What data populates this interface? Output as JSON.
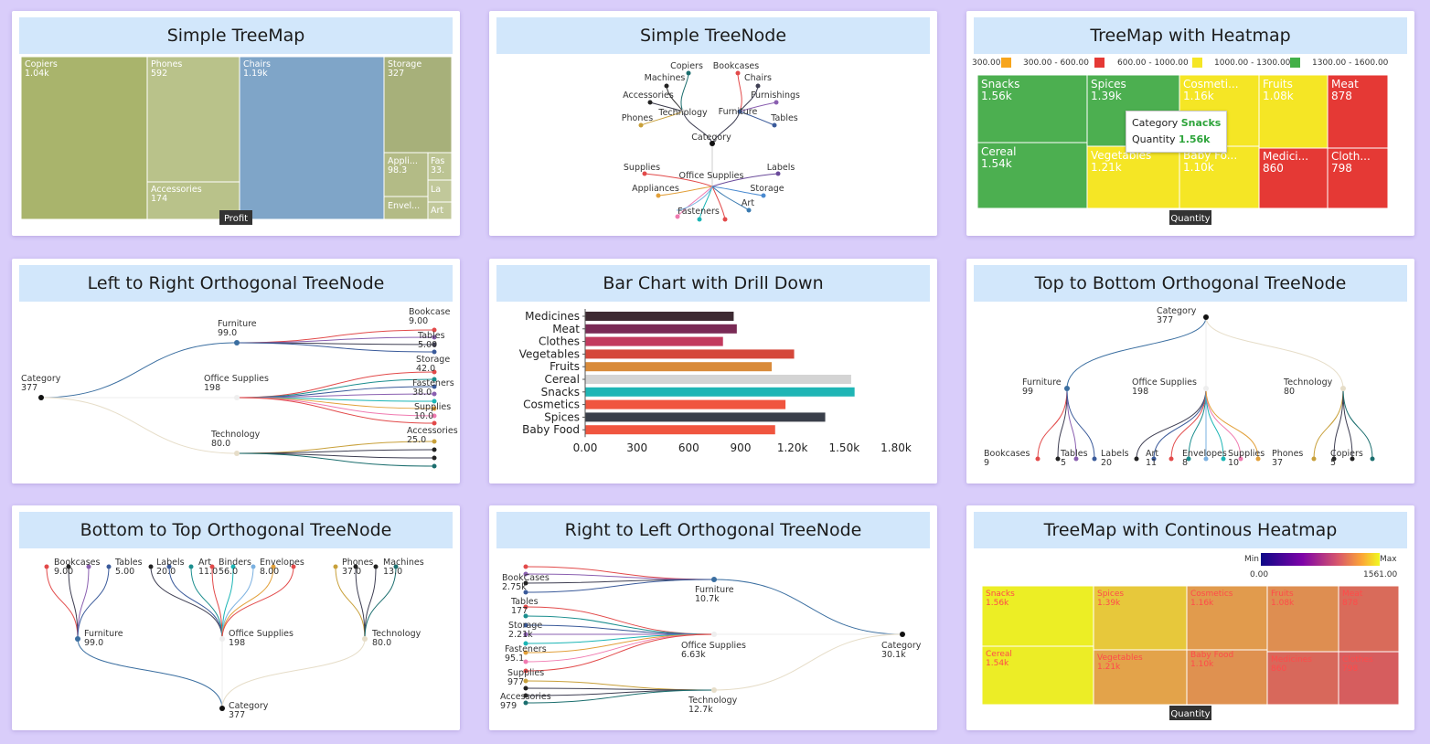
{
  "cards": {
    "c1": {
      "title": "Simple TreeMap"
    },
    "c2": {
      "title": "Simple TreeNode"
    },
    "c3": {
      "title": "TreeMap with Heatmap"
    },
    "c4": {
      "title": "Left to Right Orthogonal TreeNode"
    },
    "c5": {
      "title": "Bar Chart with Drill Down"
    },
    "c6": {
      "title": "Top to Bottom Orthogonal TreeNode"
    },
    "c7": {
      "title": "Bottom to Top Orthogonal TreeNode"
    },
    "c8": {
      "title": "Right to Left Orthogonal TreeNode"
    },
    "c9": {
      "title": "TreeMap with Continous Heatmap"
    }
  },
  "chart_data": [
    {
      "type": "treemap",
      "title": "Simple TreeMap",
      "measure": "Profit",
      "colors": {
        "base": "#a9b46c",
        "highlight": "#7fa5c8"
      },
      "items": [
        {
          "name": "Copiers",
          "value": "1.04k"
        },
        {
          "name": "Phones",
          "value": "592"
        },
        {
          "name": "Accessories",
          "value": "174"
        },
        {
          "name": "Chairs",
          "value": "1.19k"
        },
        {
          "name": "Storage",
          "value": "327"
        },
        {
          "name": "Appli...",
          "value": "98.3"
        },
        {
          "name": "Fas",
          "value": "33."
        },
        {
          "name": "La",
          "value": ""
        },
        {
          "name": "Envel...",
          "value": ""
        },
        {
          "name": "Art",
          "value": ""
        }
      ]
    },
    {
      "type": "tree",
      "title": "Simple TreeNode",
      "root": "Category",
      "groups": {
        "technology": {
          "name": "Technology",
          "children": [
            "Copiers",
            "Machines",
            "Accessories",
            "Phones"
          ]
        },
        "furniture": {
          "name": "Furniture",
          "children": [
            "Bookcases",
            "Chairs",
            "Furnishings",
            "Tables"
          ]
        },
        "office": {
          "name": "Office Supplies",
          "children": [
            "Supplies",
            "Labels",
            "Appliances",
            "Storage",
            "Fasteners",
            "Art"
          ]
        }
      }
    },
    {
      "type": "treemap",
      "title": "TreeMap with Heatmap",
      "measure": "Quantity",
      "legend": [
        {
          "label": "300.00",
          "color": "#f7a51c"
        },
        {
          "label": "300.00 - 600.00",
          "color": "#e53935"
        },
        {
          "label": "600.00 - 1000.00",
          "color": "#f5e625"
        },
        {
          "label": "1000.00 - 1300.00",
          "color": "#43b048"
        },
        {
          "label": "1300.00 - 1600.00",
          "color": "#ffffff"
        }
      ],
      "items": [
        {
          "name": "Snacks",
          "value": "1.56k"
        },
        {
          "name": "Cereal",
          "value": "1.54k"
        },
        {
          "name": "Spices",
          "value": "1.39k"
        },
        {
          "name": "Vegetables",
          "value": "1.21k"
        },
        {
          "name": "Cosmeti...",
          "value": "1.16k"
        },
        {
          "name": "Baby Fo...",
          "value": "1.10k"
        },
        {
          "name": "Fruits",
          "value": "1.08k"
        },
        {
          "name": "Meat",
          "value": "878"
        },
        {
          "name": "Medici...",
          "value": "860"
        },
        {
          "name": "Cloth...",
          "value": "798"
        }
      ],
      "tooltip": {
        "cat_label": "Category",
        "cat_value": "Snacks",
        "qty_label": "Quantity",
        "qty_value": "1.56k"
      }
    },
    {
      "type": "tree",
      "title": "Left to Right Orthogonal TreeNode",
      "root": {
        "name": "Category",
        "value": "377"
      },
      "groups": [
        {
          "name": "Furniture",
          "value": "99.0",
          "leaves": [
            {
              "name": "Bookcase",
              "value": "9.00"
            },
            {
              "name": "Tables",
              "value": "5.00"
            }
          ]
        },
        {
          "name": "Office Supplies",
          "value": "198",
          "leaves": [
            {
              "name": "Storage",
              "value": "42.0"
            },
            {
              "name": "Fasteners",
              "value": "38.0"
            },
            {
              "name": "Supplies",
              "value": "10.0"
            }
          ]
        },
        {
          "name": "Technology",
          "value": "80.0",
          "leaves": [
            {
              "name": "Accessories",
              "value": "25.0"
            }
          ]
        }
      ]
    },
    {
      "type": "bar",
      "title": "Bar Chart with Drill Down",
      "orientation": "horizontal",
      "categories": [
        "Medicines",
        "Meat",
        "Clothes",
        "Vegetables",
        "Fruits",
        "Cereal",
        "Snacks",
        "Cosmetics",
        "Spices",
        "Baby Food"
      ],
      "values": [
        860,
        878,
        798,
        1210,
        1080,
        1540,
        1560,
        1160,
        1390,
        1100
      ],
      "colors": [
        "#3d2a32",
        "#7a2a55",
        "#c23a5e",
        "#d5473a",
        "#d98b3a",
        "#d4d4d4",
        "#1fb5b5",
        "#f0553f",
        "#3a3f4a",
        "#f0553f"
      ],
      "ticks": [
        "0.00",
        "300",
        "600",
        "900",
        "1.20k",
        "1.50k",
        "1.80k"
      ],
      "xlim": [
        0,
        1800
      ]
    },
    {
      "type": "tree",
      "title": "Top to Bottom Orthogonal TreeNode",
      "root": {
        "name": "Category",
        "value": "377"
      },
      "groups": [
        {
          "name": "Furniture",
          "value": "99",
          "leaves": [
            {
              "name": "Bookcases",
              "value": "9"
            },
            {
              "name": "Tables",
              "value": "5"
            },
            {
              "name": "Labels",
              "value": "20"
            }
          ]
        },
        {
          "name": "Office Supplies",
          "value": "198",
          "leaves": [
            {
              "name": "Art",
              "value": "11"
            },
            {
              "name": "Envelopes",
              "value": "8"
            },
            {
              "name": "Supplies",
              "value": "10"
            }
          ]
        },
        {
          "name": "Technology",
          "value": "80",
          "leaves": [
            {
              "name": "Phones",
              "value": "37"
            },
            {
              "name": "Copiers",
              "value": "5"
            }
          ]
        }
      ]
    },
    {
      "type": "tree",
      "title": "Bottom to Top Orthogonal TreeNode",
      "root": {
        "name": "Category",
        "value": "377"
      },
      "groups": [
        {
          "name": "Furniture",
          "value": "99.0",
          "leaves": [
            {
              "name": "Bookcases",
              "value": "9.00"
            },
            {
              "name": "Tables",
              "value": "5.00"
            }
          ]
        },
        {
          "name": "Office Supplies",
          "value": "198",
          "leaves": [
            {
              "name": "Labels",
              "value": "20.0"
            },
            {
              "name": "Art",
              "value": "11.0"
            },
            {
              "name": "Binders",
              "value": "56.0"
            },
            {
              "name": "Envelopes",
              "value": "8.00"
            }
          ]
        },
        {
          "name": "Technology",
          "value": "80.0",
          "leaves": [
            {
              "name": "Phones",
              "value": "37.0"
            },
            {
              "name": "Machines",
              "value": "13.0"
            }
          ]
        }
      ]
    },
    {
      "type": "tree",
      "title": "Right to Left Orthogonal TreeNode",
      "root": {
        "name": "Category",
        "value": "30.1k"
      },
      "groups": [
        {
          "name": "Furniture",
          "value": "10.7k",
          "leaves": [
            {
              "name": "BookCases",
              "value": "2.75k"
            },
            {
              "name": "Tables",
              "value": "177"
            }
          ]
        },
        {
          "name": "Office Supplies",
          "value": "6.63k",
          "leaves": [
            {
              "name": "Storage",
              "value": "2.21k"
            },
            {
              "name": "Fasteners",
              "value": "95.1"
            }
          ]
        },
        {
          "name": "Technology",
          "value": "12.7k",
          "leaves": [
            {
              "name": "Supplies",
              "value": "977"
            },
            {
              "name": "Accessories",
              "value": "979"
            }
          ]
        }
      ]
    },
    {
      "type": "treemap",
      "title": "TreeMap with Continous Heatmap",
      "measure": "Quantity",
      "legend": {
        "min_label": "Min",
        "max_label": "Max",
        "min": "0.00",
        "max": "1561.00"
      },
      "items": [
        {
          "name": "Snacks",
          "value": "1.56k",
          "color": "#ecee25"
        },
        {
          "name": "Cereal",
          "value": "1.54k",
          "color": "#eced26"
        },
        {
          "name": "Spices",
          "value": "1.39k",
          "color": "#e7c83b"
        },
        {
          "name": "Vegetables",
          "value": "1.21k",
          "color": "#e3a34a"
        },
        {
          "name": "Cosmetics",
          "value": "1.16k",
          "color": "#e19b4d"
        },
        {
          "name": "Baby Food",
          "value": "1.10k",
          "color": "#df9150"
        },
        {
          "name": "Fruits",
          "value": "1.08k",
          "color": "#de8e51"
        },
        {
          "name": "Meat",
          "value": "878",
          "color": "#d96b5a"
        },
        {
          "name": "Medicines",
          "value": "860",
          "color": "#d8685b"
        },
        {
          "name": "Clothes",
          "value": "798",
          "color": "#d65d5e"
        }
      ]
    }
  ]
}
